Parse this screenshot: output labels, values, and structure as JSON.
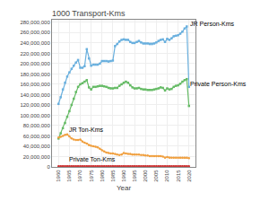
{
  "chart_data": {
    "type": "line",
    "title": "1000 Transport-Kms",
    "xlabel": "Year",
    "x": [
      1960,
      1961,
      1962,
      1963,
      1964,
      1965,
      1966,
      1967,
      1968,
      1969,
      1970,
      1971,
      1972,
      1973,
      1974,
      1975,
      1976,
      1977,
      1978,
      1979,
      1980,
      1981,
      1982,
      1983,
      1984,
      1985,
      1986,
      1987,
      1988,
      1989,
      1990,
      1991,
      1992,
      1993,
      1994,
      1995,
      1996,
      1997,
      1998,
      1999,
      2000,
      2001,
      2002,
      2003,
      2004,
      2005,
      2006,
      2007,
      2008,
      2009,
      2010,
      2011,
      2012,
      2013,
      2014,
      2015,
      2016,
      2017,
      2018,
      2019,
      2020
    ],
    "series": [
      {
        "name": "JR Person-Kms",
        "color": "#6ab0de",
        "marker": "square",
        "values": [
          122000000,
          135000000,
          150000000,
          163000000,
          175000000,
          183000000,
          190000000,
          196000000,
          202000000,
          207000000,
          192000000,
          192000000,
          195000000,
          228000000,
          210000000,
          196000000,
          198000000,
          198000000,
          198000000,
          200000000,
          205000000,
          205000000,
          205000000,
          204000000,
          205000000,
          206000000,
          234000000,
          238000000,
          243000000,
          246000000,
          247000000,
          246000000,
          246000000,
          242000000,
          240000000,
          240000000,
          242000000,
          244000000,
          241000000,
          239000000,
          239000000,
          239000000,
          238000000,
          238000000,
          239000000,
          241000000,
          244000000,
          246000000,
          247000000,
          242000000,
          248000000,
          246000000,
          249000000,
          253000000,
          254000000,
          255000000,
          258000000,
          262000000,
          268000000,
          272000000,
          155000000
        ]
      },
      {
        "name": "Private Person-Kms",
        "color": "#66bb66",
        "marker": "square",
        "values": [
          55000000,
          65000000,
          75000000,
          85000000,
          97000000,
          108000000,
          120000000,
          132000000,
          145000000,
          155000000,
          160000000,
          162000000,
          165000000,
          168000000,
          154000000,
          150000000,
          155000000,
          155000000,
          156000000,
          157000000,
          157000000,
          156000000,
          155000000,
          153000000,
          152000000,
          152000000,
          153000000,
          153000000,
          157000000,
          160000000,
          163000000,
          165000000,
          163000000,
          158000000,
          154000000,
          152000000,
          152000000,
          153000000,
          151000000,
          150000000,
          150000000,
          149000000,
          149000000,
          149000000,
          150000000,
          151000000,
          152000000,
          154000000,
          153000000,
          148000000,
          152000000,
          150000000,
          151000000,
          155000000,
          157000000,
          158000000,
          161000000,
          165000000,
          168000000,
          170000000,
          118000000
        ]
      },
      {
        "name": "JR Ton-Kms",
        "color": "#f0a040",
        "marker": "circle",
        "values": [
          57000000,
          58000000,
          60000000,
          62000000,
          63000000,
          59000000,
          55000000,
          53000000,
          52000000,
          52000000,
          53000000,
          49000000,
          47000000,
          45000000,
          42000000,
          41000000,
          40000000,
          39000000,
          38000000,
          35000000,
          32000000,
          30000000,
          28000000,
          27000000,
          26000000,
          26000000,
          25000000,
          24000000,
          23000000,
          24000000,
          27000000,
          26000000,
          25000000,
          25000000,
          24000000,
          24000000,
          24000000,
          24000000,
          23000000,
          23000000,
          22000000,
          22000000,
          21000000,
          21000000,
          21000000,
          21000000,
          21000000,
          21000000,
          20000000,
          18000000,
          19000000,
          18000000,
          18000000,
          18000000,
          18000000,
          18000000,
          18000000,
          18000000,
          18000000,
          18000000,
          17000000
        ]
      },
      {
        "name": "Private Ton-Kms",
        "color": "#cc3333",
        "marker": "circle",
        "values": [
          1500000,
          1500000,
          1500000,
          1500000,
          1500000,
          1500000,
          1500000,
          1500000,
          1500000,
          1500000,
          1500000,
          1500000,
          1500000,
          1500000,
          1500000,
          1500000,
          1500000,
          1500000,
          1500000,
          1500000,
          1500000,
          1500000,
          1500000,
          1500000,
          1500000,
          1500000,
          1500000,
          1500000,
          1500000,
          1500000,
          1500000,
          1500000,
          1500000,
          1500000,
          1500000,
          1500000,
          1500000,
          1500000,
          1500000,
          1500000,
          1500000,
          1500000,
          1500000,
          1500000,
          1500000,
          1500000,
          1500000,
          1500000,
          1500000,
          1500000,
          1500000,
          1500000,
          1500000,
          1500000,
          1500000,
          1500000,
          1500000,
          1500000,
          1500000,
          1500000,
          1500000
        ]
      }
    ],
    "annotations": [
      {
        "text": "JR Person-Kms",
        "x": 2019.5,
        "y": 277000000
      },
      {
        "text": "Private Person-Kms",
        "x": 2019.5,
        "y": 161000000
      },
      {
        "text": "JR Ton-Kms",
        "x": 1964,
        "y": 63000000
      },
      {
        "text": "Private Ton-Kms",
        "x": 1964,
        "y": 5500000
      }
    ],
    "xlim": [
      1957,
      2023
    ],
    "ylim": [
      0,
      285000000
    ],
    "xticks": [
      1960,
      1965,
      1970,
      1975,
      1980,
      1985,
      1990,
      1995,
      2000,
      2005,
      2010,
      2015,
      2020
    ],
    "yticks": [
      0,
      {
        "value": 20000000,
        "label": "20,000,000"
      },
      {
        "value": 40000000,
        "label": "40,000,000"
      },
      {
        "value": 60000000,
        "label": "60,000,000"
      },
      {
        "value": 80000000,
        "label": "80,000,000"
      },
      {
        "value": 100000000,
        "label": "100,000,000"
      },
      {
        "value": 120000000,
        "label": "120,000,000"
      },
      {
        "value": 140000000,
        "label": "140,000,000"
      },
      {
        "value": 160000000,
        "label": "160,000,000"
      },
      {
        "value": 180000000,
        "label": "180,000,000"
      },
      {
        "value": 200000000,
        "label": "200,000,000"
      },
      {
        "value": 220000000,
        "label": "220,000,000"
      },
      {
        "value": 240000000,
        "label": "240,000,000"
      },
      {
        "value": 260000000,
        "label": "260,000,000"
      },
      {
        "value": 280000000,
        "label": "280,000,000"
      }
    ],
    "grid": true
  }
}
